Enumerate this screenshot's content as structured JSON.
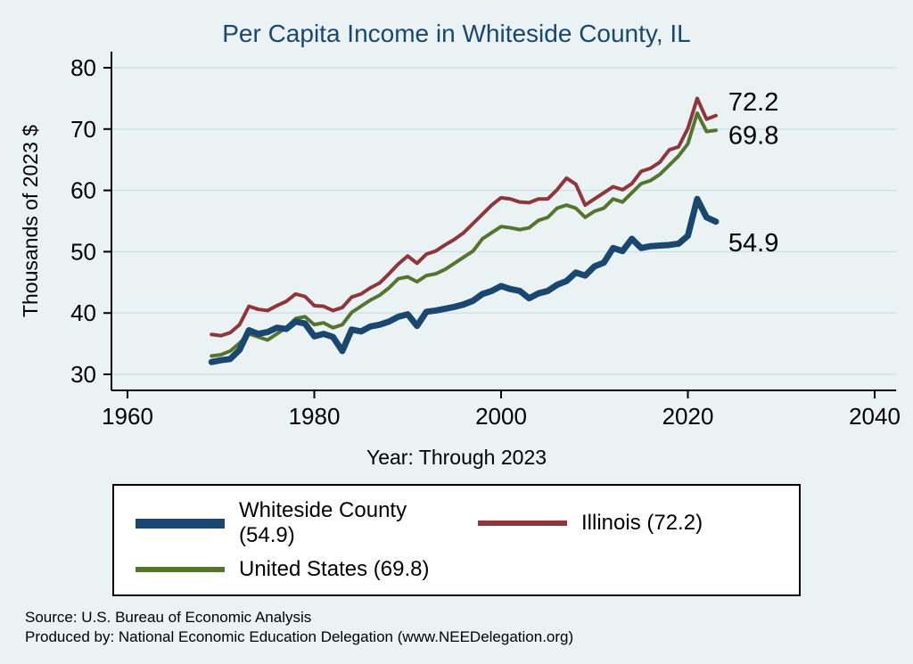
{
  "title": "Per Capita Income in Whiteside County, IL",
  "ylabel": "Thousands of 2023 $",
  "xlabel": "Year: Through 2023",
  "source_line1": "Source: U.S. Bureau of Economic Analysis",
  "source_line2": "Produced by: National Economic Education Delegation (www.NEEDelegation.org)",
  "colors": {
    "background": "#eaf2f3",
    "title": "#1a476f",
    "grid": "#cfe0ea",
    "axis": "#000000",
    "whiteside": "#1a476f",
    "illinois": "#90353b",
    "united_states": "#55752f"
  },
  "chart_data": {
    "type": "line",
    "title": "Per Capita Income in Whiteside County, IL",
    "xlabel": "Year: Through 2023",
    "ylabel": "Thousands of 2023 $",
    "xlim": [
      1958,
      2042
    ],
    "ylim": [
      28,
      82
    ],
    "xticks": [
      1960,
      1980,
      2000,
      2020,
      2040
    ],
    "yticks": [
      30,
      40,
      50,
      60,
      70,
      80
    ],
    "grid": true,
    "legend_position": "bottom",
    "x": [
      1969,
      1970,
      1971,
      1972,
      1973,
      1974,
      1975,
      1976,
      1977,
      1978,
      1979,
      1980,
      1981,
      1982,
      1983,
      1984,
      1985,
      1986,
      1987,
      1988,
      1989,
      1990,
      1991,
      1992,
      1993,
      1994,
      1995,
      1996,
      1997,
      1998,
      1999,
      2000,
      2001,
      2002,
      2003,
      2004,
      2005,
      2006,
      2007,
      2008,
      2009,
      2010,
      2011,
      2012,
      2013,
      2014,
      2015,
      2016,
      2017,
      2018,
      2019,
      2020,
      2021,
      2022,
      2023
    ],
    "series": [
      {
        "name": "Whiteside County (54.9)",
        "end_label": "54.9",
        "color": "#1a476f",
        "stroke_width": 7,
        "values": [
          32.0,
          32.3,
          32.5,
          34.0,
          37.2,
          36.6,
          36.9,
          37.6,
          37.4,
          38.6,
          38.3,
          36.2,
          36.6,
          36.1,
          33.8,
          37.3,
          37.0,
          37.8,
          38.1,
          38.6,
          39.4,
          39.8,
          37.9,
          40.2,
          40.4,
          40.7,
          41.0,
          41.4,
          42.0,
          43.1,
          43.6,
          44.4,
          43.9,
          43.6,
          42.4,
          43.2,
          43.6,
          44.6,
          45.2,
          46.6,
          46.1,
          47.6,
          48.2,
          50.6,
          50.1,
          52.1,
          50.6,
          50.9,
          51.0,
          51.1,
          51.3,
          52.6,
          58.6,
          55.6,
          54.9
        ]
      },
      {
        "name": "Illinois (72.2)",
        "end_label": "72.2",
        "color": "#90353b",
        "stroke_width": 4,
        "values": [
          36.5,
          36.3,
          36.8,
          38.1,
          41.1,
          40.6,
          40.4,
          41.2,
          41.9,
          43.1,
          42.7,
          41.2,
          41.1,
          40.4,
          40.9,
          42.6,
          43.1,
          44.1,
          44.9,
          46.4,
          48.0,
          49.3,
          48.1,
          49.6,
          50.1,
          51.1,
          52.0,
          53.1,
          54.6,
          56.1,
          57.6,
          58.8,
          58.6,
          58.1,
          58.0,
          58.6,
          58.6,
          60.1,
          62.0,
          61.0,
          57.6,
          58.6,
          59.6,
          60.6,
          60.1,
          61.1,
          63.1,
          63.6,
          64.6,
          66.6,
          67.1,
          70.1,
          75.0,
          71.6,
          72.2
        ]
      },
      {
        "name": "United States (69.8)",
        "end_label": "69.8",
        "color": "#55752f",
        "stroke_width": 4,
        "values": [
          33.0,
          33.2,
          33.8,
          35.1,
          36.6,
          36.1,
          35.6,
          36.6,
          37.6,
          39.1,
          39.4,
          38.1,
          38.4,
          37.6,
          38.1,
          40.1,
          41.1,
          42.1,
          42.9,
          44.1,
          45.6,
          45.9,
          45.1,
          46.1,
          46.4,
          47.1,
          48.1,
          49.1,
          50.1,
          52.1,
          53.1,
          54.1,
          53.9,
          53.6,
          53.9,
          55.1,
          55.6,
          57.1,
          57.6,
          57.1,
          55.6,
          56.6,
          57.1,
          58.6,
          58.1,
          59.6,
          61.1,
          61.6,
          62.6,
          64.1,
          65.6,
          67.6,
          72.6,
          69.6,
          69.8
        ]
      }
    ]
  }
}
